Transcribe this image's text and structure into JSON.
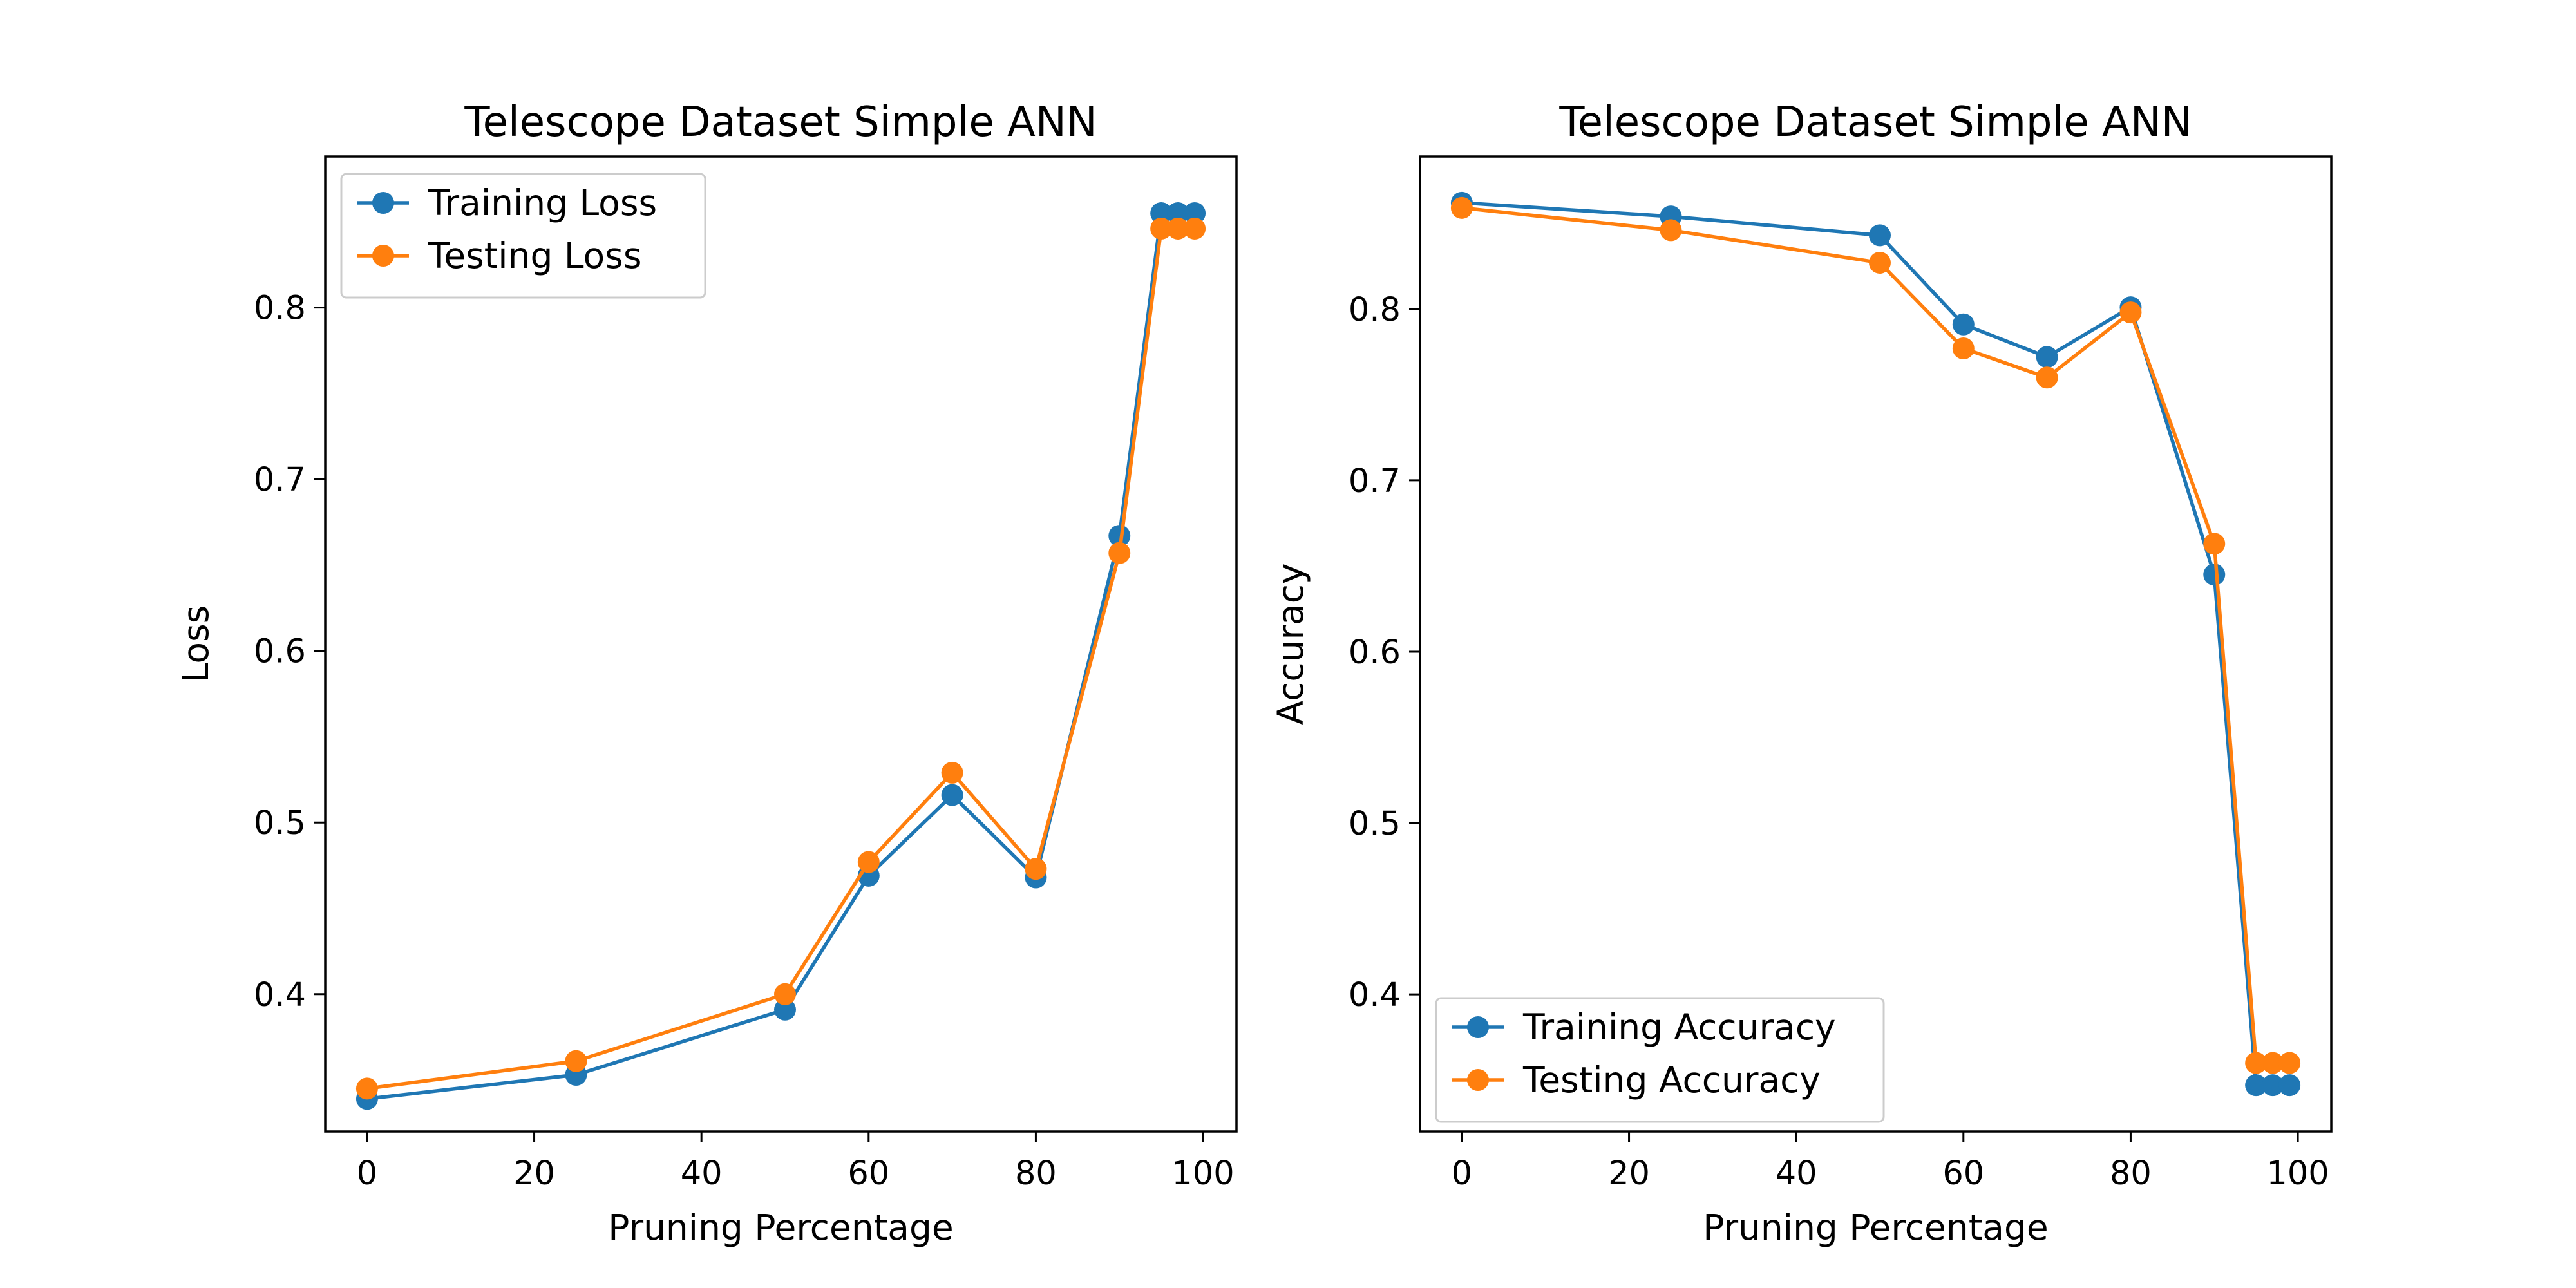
{
  "chart_data": [
    {
      "type": "line",
      "title": "Telescope Dataset Simple ANN",
      "xlabel": "Pruning Percentage",
      "ylabel": "Loss",
      "xlim": [
        -5,
        104
      ],
      "ylim": [
        0.32,
        0.888
      ],
      "xticks": [
        0,
        20,
        40,
        60,
        80,
        100
      ],
      "yticks": [
        0.4,
        0.5,
        0.6,
        0.7,
        0.8
      ],
      "legend_position": "upper left",
      "grid": false,
      "x": [
        0,
        25,
        50,
        60,
        70,
        80,
        90,
        95,
        97,
        99
      ],
      "series": [
        {
          "name": "Training Loss",
          "color": "#1f77b4",
          "marker": "circle",
          "values": [
            0.339,
            0.353,
            0.391,
            0.469,
            0.516,
            0.468,
            0.667,
            0.855,
            0.855,
            0.855
          ]
        },
        {
          "name": "Testing Loss",
          "color": "#ff7f0e",
          "marker": "circle",
          "values": [
            0.345,
            0.361,
            0.4,
            0.477,
            0.529,
            0.473,
            0.657,
            0.846,
            0.846,
            0.846
          ]
        }
      ]
    },
    {
      "type": "line",
      "title": "Telescope Dataset Simple ANN",
      "xlabel": "Pruning Percentage",
      "ylabel": "Accuracy",
      "xlim": [
        -5,
        104
      ],
      "ylim": [
        0.32,
        0.889
      ],
      "xticks": [
        0,
        20,
        40,
        60,
        80,
        100
      ],
      "yticks": [
        0.4,
        0.5,
        0.6,
        0.7,
        0.8
      ],
      "legend_position": "lower left",
      "grid": false,
      "x": [
        0,
        25,
        50,
        60,
        70,
        80,
        90,
        95,
        97,
        99
      ],
      "series": [
        {
          "name": "Training Accuracy",
          "color": "#1f77b4",
          "marker": "circle",
          "values": [
            0.862,
            0.854,
            0.843,
            0.791,
            0.772,
            0.801,
            0.645,
            0.347,
            0.347,
            0.347
          ]
        },
        {
          "name": "Testing Accuracy",
          "color": "#ff7f0e",
          "marker": "circle",
          "values": [
            0.859,
            0.846,
            0.827,
            0.777,
            0.76,
            0.798,
            0.663,
            0.36,
            0.36,
            0.36
          ]
        }
      ]
    }
  ]
}
